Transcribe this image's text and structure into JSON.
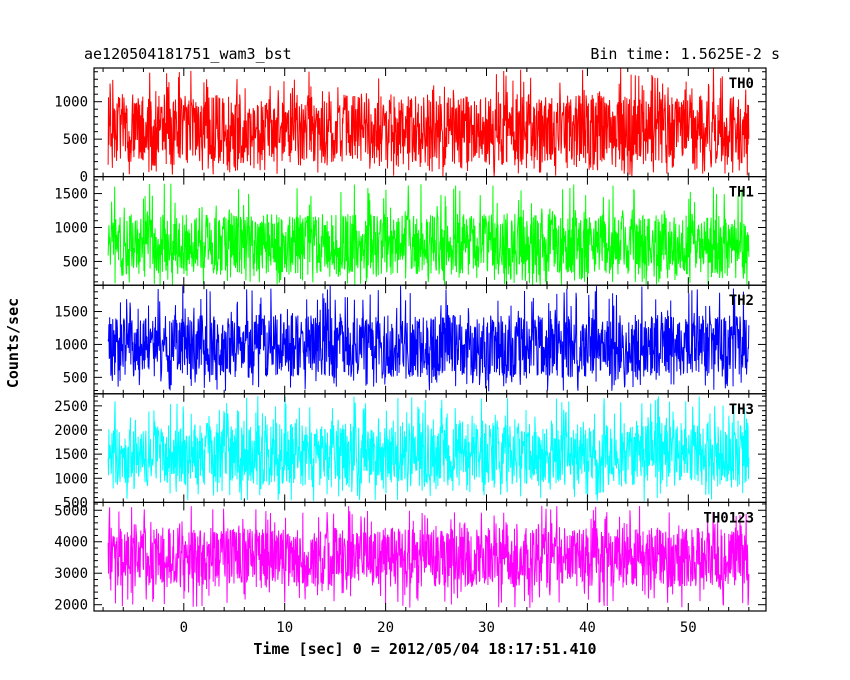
{
  "chart_data": {
    "type": "line",
    "title": "ae120504181751_wam3_bst",
    "subtitle": "Bin time: 1.5625E-2 s",
    "xlabel": "Time [sec] 0 = 2012/05/04 18:17:51.410",
    "ylabel": "Counts/sec",
    "xlim": [
      -8.9,
      57.7
    ],
    "x_range": [
      -7.5,
      56.0
    ],
    "x_ticks": [
      0,
      10,
      20,
      30,
      40,
      50
    ],
    "x_tick_labels": [
      "0",
      "10",
      "20",
      "30",
      "40",
      "50"
    ],
    "grid": false,
    "panels": [
      {
        "name": "TH0",
        "color": "#ff0000",
        "ylim": [
          0,
          1450
        ],
        "y_ticks": [
          0,
          500,
          1000
        ],
        "y_tick_labels": [
          "0",
          "500",
          "1000"
        ],
        "mean": 650,
        "low_typical": 150,
        "high_typical": 1100,
        "min": 0,
        "max": 1450
      },
      {
        "name": "TH1",
        "color": "#00ff00",
        "ylim": [
          150,
          1750
        ],
        "y_ticks": [
          500,
          1000,
          1500
        ],
        "y_tick_labels": [
          "500",
          "1000",
          "1500"
        ],
        "mean": 750,
        "low_typical": 300,
        "high_typical": 1200,
        "min": 150,
        "max": 1650
      },
      {
        "name": "TH2",
        "color": "#0000ff",
        "ylim": [
          250,
          1900
        ],
        "y_ticks": [
          500,
          1000,
          1500
        ],
        "y_tick_labels": [
          "500",
          "1000",
          "1500"
        ],
        "mean": 950,
        "low_typical": 500,
        "high_typical": 1450,
        "min": 280,
        "max": 1900
      },
      {
        "name": "TH3",
        "color": "#00ffff",
        "ylim": [
          500,
          2750
        ],
        "y_ticks": [
          500,
          1000,
          1500,
          2000,
          2500
        ],
        "y_tick_labels": [
          "500",
          "1000",
          "1500",
          "2000",
          "2500"
        ],
        "mean": 1500,
        "low_typical": 850,
        "high_typical": 2150,
        "min": 520,
        "max": 2700
      },
      {
        "name": "TH0123",
        "color": "#ff00ff",
        "ylim": [
          1800,
          5250
        ],
        "y_ticks": [
          2000,
          3000,
          4000,
          5000
        ],
        "y_tick_labels": [
          "2000",
          "3000",
          "4000",
          "5000"
        ],
        "mean": 3500,
        "low_typical": 2550,
        "high_typical": 4450,
        "min": 1900,
        "max": 5150
      }
    ]
  }
}
